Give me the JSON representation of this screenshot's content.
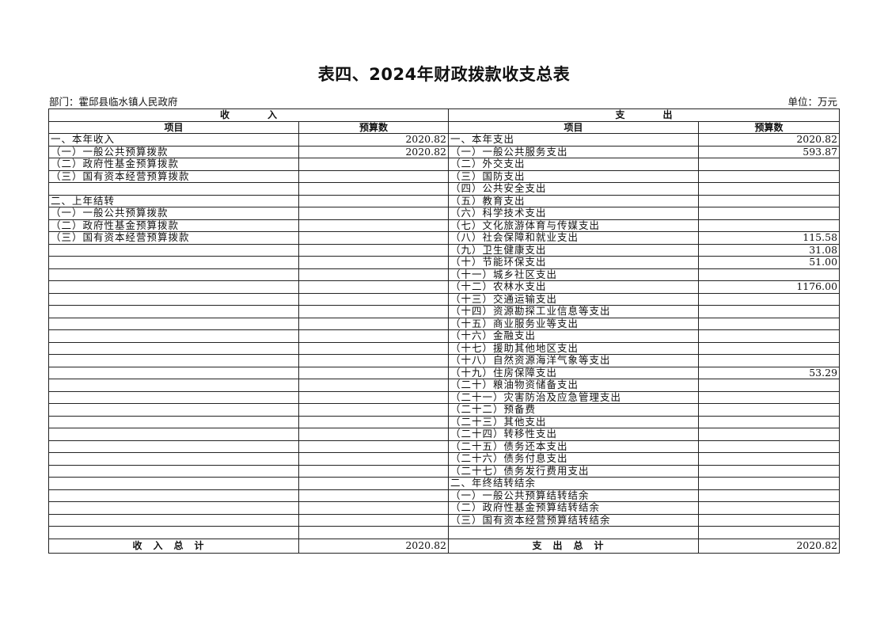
{
  "title": "表四、2024年财政拨款收支总表",
  "department": "部门：霍邱县临水镇人民政府",
  "unit": "单位：万元",
  "income_header": "收　　　　入",
  "expense_header": "支　　　　出",
  "col_item": "项目",
  "col_budget": "预算数",
  "income_rows": [
    {
      "item": "一、本年收入",
      "value": "2020.82"
    },
    {
      "item": "（一）一般公共预算拨款",
      "value": "2020.82"
    },
    {
      "item": "（二）政府性基金预算拨款",
      "value": ""
    },
    {
      "item": "（三）国有资本经营预算拨款",
      "value": ""
    },
    {
      "item": "",
      "value": ""
    },
    {
      "item": "二、上年结转",
      "value": ""
    },
    {
      "item": "（一）一般公共预算拨款",
      "value": ""
    },
    {
      "item": "（二）政府性基金预算拨款",
      "value": ""
    },
    {
      "item": "（三）国有资本经营预算拨款",
      "value": ""
    }
  ],
  "expense_rows": [
    {
      "item": "一、本年支出",
      "value": "2020.82"
    },
    {
      "item": "（一）一般公共服务支出",
      "value": "593.87"
    },
    {
      "item": "（二）外交支出",
      "value": ""
    },
    {
      "item": "（三）国防支出",
      "value": ""
    },
    {
      "item": "（四）公共安全支出",
      "value": ""
    },
    {
      "item": "（五）教育支出",
      "value": ""
    },
    {
      "item": "（六）科学技术支出",
      "value": ""
    },
    {
      "item": "（七）文化旅游体育与传媒支出",
      "value": ""
    },
    {
      "item": "（八）社会保障和就业支出",
      "value": "115.58"
    },
    {
      "item": "（九）卫生健康支出",
      "value": "31.08"
    },
    {
      "item": "（十）节能环保支出",
      "value": "51.00"
    },
    {
      "item": "（十一）城乡社区支出",
      "value": ""
    },
    {
      "item": "（十二）农林水支出",
      "value": "1176.00"
    },
    {
      "item": "（十三）交通运输支出",
      "value": ""
    },
    {
      "item": "（十四）资源勘探工业信息等支出",
      "value": ""
    },
    {
      "item": "（十五）商业服务业等支出",
      "value": ""
    },
    {
      "item": "（十六）金融支出",
      "value": ""
    },
    {
      "item": "（十七）援助其他地区支出",
      "value": ""
    },
    {
      "item": "（十八）自然资源海洋气象等支出",
      "value": ""
    },
    {
      "item": "（十九）住房保障支出",
      "value": "53.29"
    },
    {
      "item": "（二十）粮油物资储备支出",
      "value": ""
    },
    {
      "item": "（二十一）灾害防治及应急管理支出",
      "value": ""
    },
    {
      "item": "（二十二）预备费",
      "value": ""
    },
    {
      "item": "（二十三）其他支出",
      "value": ""
    },
    {
      "item": "（二十四）转移性支出",
      "value": ""
    },
    {
      "item": "（二十五）债务还本支出",
      "value": ""
    },
    {
      "item": "（二十六）债务付息支出",
      "value": ""
    },
    {
      "item": "（二十七）债务发行费用支出",
      "value": ""
    },
    {
      "item": "二、年终结转结余",
      "value": ""
    },
    {
      "item": "（一）一般公共预算结转结余",
      "value": ""
    },
    {
      "item": "（二）政府性基金预算结转结余",
      "value": ""
    },
    {
      "item": "（三）国有资本经营预算结转结余",
      "value": ""
    },
    {
      "item": "",
      "value": ""
    }
  ],
  "income_total_label": "收入总计",
  "income_total": "2020.82",
  "expense_total_label": "支出总计",
  "expense_total": "2020.82"
}
